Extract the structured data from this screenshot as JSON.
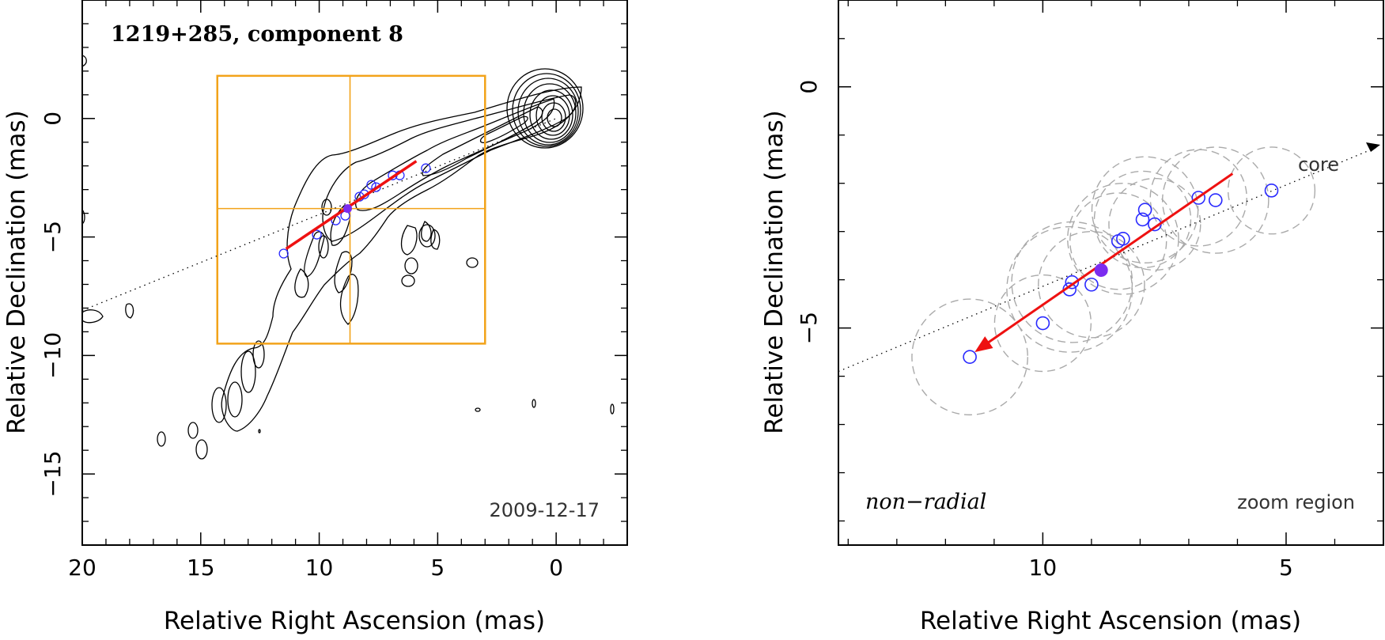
{
  "chart_data": [
    {
      "panel": "left",
      "type": "scatter",
      "title": "1219+285, component 8",
      "date_label": "2009-12-17",
      "xlabel": "Relative Right Ascension (mas)",
      "ylabel": "Relative Declination (mas)",
      "xlim": [
        20,
        -3
      ],
      "ylim": [
        -18,
        5
      ],
      "xticks": [
        20,
        15,
        10,
        5,
        0
      ],
      "yticks": [
        0,
        -5,
        -10,
        -15
      ],
      "points": [
        {
          "x": 11.5,
          "y": -5.7
        },
        {
          "x": 10.1,
          "y": -4.9
        },
        {
          "x": 9.3,
          "y": -4.3
        },
        {
          "x": 8.9,
          "y": -4.1
        },
        {
          "x": 8.3,
          "y": -3.3
        },
        {
          "x": 8.1,
          "y": -3.2
        },
        {
          "x": 7.8,
          "y": -2.8
        },
        {
          "x": 7.6,
          "y": -2.9
        },
        {
          "x": 6.9,
          "y": -2.4
        },
        {
          "x": 6.6,
          "y": -2.4
        },
        {
          "x": 5.5,
          "y": -2.1
        }
      ],
      "mean_position": {
        "x": 8.8,
        "y": -3.8
      },
      "trajectory": {
        "from": {
          "x": 11.4,
          "y": -5.5
        },
        "to": {
          "x": 5.9,
          "y": -1.8
        }
      },
      "core_line": {
        "from": {
          "x": 20,
          "y": -8.1
        },
        "to": {
          "x": 0,
          "y": 0
        }
      },
      "zoom_region": {
        "x_range": [
          14.3,
          3.0
        ],
        "y_range": [
          -9.5,
          1.8
        ],
        "cross_x": 8.7,
        "cross_y": -3.8
      },
      "contours": "black contour map of the jet emission (core at origin)"
    },
    {
      "panel": "right",
      "type": "scatter",
      "xlabel": "Relative Right Ascension (mas)",
      "ylabel": "Relative Declination (mas)",
      "xlim": [
        14.2,
        3.0
      ],
      "ylim": [
        -9.5,
        1.8
      ],
      "xticks": [
        10,
        5
      ],
      "yticks": [
        0,
        -5
      ],
      "motion_label": "non−radial",
      "region_label": "zoom region",
      "core_label": "core",
      "points": [
        {
          "x": 11.5,
          "y": -5.6
        },
        {
          "x": 10.0,
          "y": -4.9
        },
        {
          "x": 9.45,
          "y": -4.2
        },
        {
          "x": 9.4,
          "y": -4.05
        },
        {
          "x": 9.0,
          "y": -4.1
        },
        {
          "x": 8.45,
          "y": -3.2
        },
        {
          "x": 8.35,
          "y": -3.15
        },
        {
          "x": 7.95,
          "y": -2.75
        },
        {
          "x": 7.9,
          "y": -2.55
        },
        {
          "x": 7.7,
          "y": -2.85
        },
        {
          "x": 6.8,
          "y": -2.3
        },
        {
          "x": 6.45,
          "y": -2.35
        },
        {
          "x": 5.3,
          "y": -2.15
        }
      ],
      "mean_position": {
        "x": 8.8,
        "y": -3.8
      },
      "trajectory_arrow": {
        "from": {
          "x": 6.1,
          "y": -1.8
        },
        "to": {
          "x": 11.4,
          "y": -5.5
        }
      },
      "component_size_circles": [
        {
          "x": 11.5,
          "y": -5.6,
          "r": 1.2
        },
        {
          "x": 10.0,
          "y": -4.9,
          "r": 1.0
        },
        {
          "x": 9.45,
          "y": -4.2,
          "r": 1.3
        },
        {
          "x": 9.4,
          "y": -4.05,
          "r": 1.25
        },
        {
          "x": 9.0,
          "y": -4.1,
          "r": 1.1
        },
        {
          "x": 8.45,
          "y": -3.2,
          "r": 1.0
        },
        {
          "x": 8.35,
          "y": -3.15,
          "r": 1.15
        },
        {
          "x": 7.95,
          "y": -2.75,
          "r": 1.0
        },
        {
          "x": 7.9,
          "y": -2.55,
          "r": 1.1
        },
        {
          "x": 7.7,
          "y": -2.85,
          "r": 0.95
        },
        {
          "x": 6.8,
          "y": -2.3,
          "r": 1.0
        },
        {
          "x": 6.45,
          "y": -2.35,
          "r": 1.1
        },
        {
          "x": 5.3,
          "y": -2.15,
          "r": 0.9
        }
      ]
    }
  ]
}
